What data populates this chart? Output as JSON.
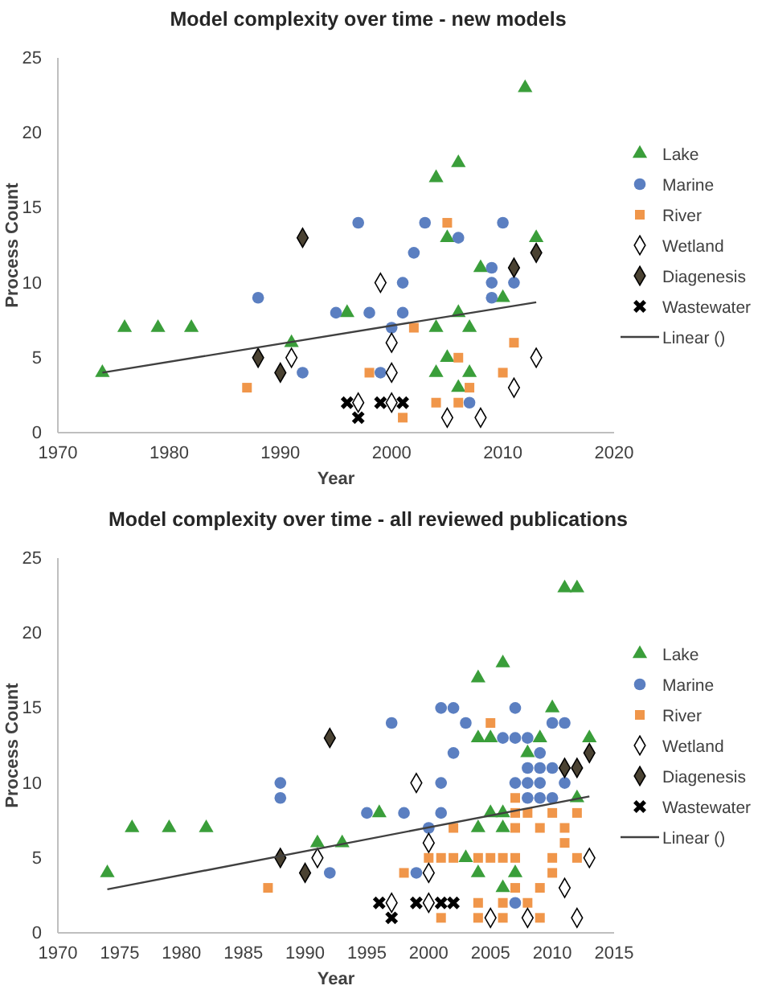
{
  "chart_data": [
    {
      "type": "scatter",
      "title": "Model complexity over time - new models",
      "xlabel": "Year",
      "ylabel": "Process Count",
      "xlim": [
        1970,
        2020
      ],
      "xticks": [
        1970,
        1980,
        1990,
        2000,
        2010,
        2020
      ],
      "ylim": [
        0,
        25
      ],
      "yticks": [
        0,
        5,
        10,
        15,
        20,
        25
      ],
      "grid": false,
      "legend": "right",
      "series": [
        {
          "name": "Lake",
          "color": "#3a9e3a",
          "marker": "triangle",
          "x": [
            1974,
            1976,
            1979,
            1982,
            1991,
            1996,
            2004,
            2004,
            2004,
            2005,
            2005,
            2006,
            2006,
            2006,
            2007,
            2007,
            2008,
            2010,
            2012,
            2013
          ],
          "values": [
            4,
            7,
            7,
            7,
            6,
            8,
            17,
            7,
            4,
            13,
            5,
            18,
            8,
            3,
            7,
            4,
            11,
            9,
            23,
            13
          ]
        },
        {
          "name": "Marine",
          "color": "#5b7fc1",
          "marker": "circle",
          "x": [
            1988,
            1992,
            1995,
            1997,
            1998,
            1999,
            2000,
            2001,
            2001,
            2002,
            2003,
            2006,
            2007,
            2009,
            2009,
            2009,
            2010,
            2011
          ],
          "values": [
            9,
            4,
            8,
            14,
            8,
            4,
            7,
            10,
            8,
            12,
            14,
            13,
            2,
            11,
            10,
            9,
            14,
            10
          ]
        },
        {
          "name": "River",
          "color": "#f0964a",
          "marker": "square",
          "x": [
            1987,
            1998,
            2001,
            2002,
            2004,
            2005,
            2006,
            2006,
            2007,
            2010,
            2011
          ],
          "values": [
            3,
            4,
            1,
            7,
            2,
            14,
            5,
            2,
            3,
            4,
            6
          ]
        },
        {
          "name": "Wetland",
          "color": "#ffffff",
          "marker": "diamond",
          "x": [
            1991,
            1997,
            1999,
            2000,
            2000,
            2000,
            2005,
            2008,
            2011,
            2013
          ],
          "values": [
            5,
            2,
            10,
            6,
            2,
            4,
            1,
            1,
            3,
            5
          ]
        },
        {
          "name": "Diagenesis",
          "color": "#4a4232",
          "marker": "diamond",
          "x": [
            1988,
            1990,
            1992,
            2011,
            2013
          ],
          "values": [
            5,
            4,
            13,
            11,
            12
          ]
        },
        {
          "name": "Wastewater",
          "color": "#000000",
          "marker": "cross",
          "x": [
            1996,
            1997,
            1999,
            2001
          ],
          "values": [
            2,
            1,
            2,
            2
          ]
        },
        {
          "name": "Linear ()",
          "type": "line",
          "color": "#404040",
          "marker": "none",
          "x": [
            1974,
            2013
          ],
          "values": [
            4,
            8.7
          ]
        }
      ]
    },
    {
      "type": "scatter",
      "title": "Model complexity over time - all reviewed publications",
      "xlabel": "Year",
      "ylabel": "Process Count",
      "xlim": [
        1970,
        2015
      ],
      "xticks": [
        1970,
        1975,
        1980,
        1985,
        1990,
        1995,
        2000,
        2005,
        2010,
        2015
      ],
      "ylim": [
        0,
        25
      ],
      "yticks": [
        0,
        5,
        10,
        15,
        20,
        25
      ],
      "grid": false,
      "legend": "right",
      "series": [
        {
          "name": "Lake",
          "color": "#3a9e3a",
          "marker": "triangle",
          "x": [
            1974,
            1976,
            1979,
            1982,
            1991,
            1993,
            1996,
            2003,
            2004,
            2004,
            2004,
            2004,
            2005,
            2005,
            2006,
            2006,
            2006,
            2006,
            2007,
            2008,
            2009,
            2010,
            2011,
            2012,
            2012,
            2013
          ],
          "values": [
            4,
            7,
            7,
            7,
            6,
            6,
            8,
            5,
            17,
            13,
            7,
            4,
            13,
            8,
            18,
            8,
            7,
            3,
            4,
            12,
            13,
            15,
            23,
            23,
            9,
            13
          ]
        },
        {
          "name": "Marine",
          "color": "#5b7fc1",
          "marker": "circle",
          "x": [
            1988,
            1988,
            1992,
            1995,
            1997,
            1998,
            1999,
            2000,
            2001,
            2001,
            2001,
            2002,
            2002,
            2003,
            2006,
            2007,
            2007,
            2007,
            2007,
            2008,
            2008,
            2008,
            2008,
            2009,
            2009,
            2009,
            2009,
            2010,
            2010,
            2010,
            2011,
            2011
          ],
          "values": [
            10,
            9,
            4,
            8,
            14,
            8,
            4,
            7,
            15,
            10,
            8,
            15,
            12,
            14,
            13,
            15,
            13,
            10,
            2,
            13,
            11,
            10,
            9,
            12,
            11,
            10,
            9,
            14,
            11,
            9,
            14,
            10
          ]
        },
        {
          "name": "River",
          "color": "#f0964a",
          "marker": "square",
          "x": [
            1987,
            1998,
            2000,
            2001,
            2001,
            2002,
            2002,
            2004,
            2004,
            2004,
            2005,
            2005,
            2006,
            2006,
            2006,
            2007,
            2007,
            2007,
            2007,
            2007,
            2008,
            2008,
            2009,
            2009,
            2009,
            2010,
            2010,
            2010,
            2011,
            2011,
            2012,
            2012
          ],
          "values": [
            3,
            4,
            5,
            5,
            1,
            7,
            5,
            5,
            2,
            1,
            14,
            5,
            5,
            2,
            1,
            9,
            8,
            7,
            5,
            3,
            8,
            2,
            7,
            3,
            1,
            8,
            5,
            4,
            7,
            6,
            8,
            5
          ]
        },
        {
          "name": "Wetland",
          "color": "#ffffff",
          "marker": "diamond",
          "x": [
            1991,
            1997,
            1999,
            2000,
            2000,
            2000,
            2005,
            2008,
            2011,
            2012,
            2013
          ],
          "values": [
            5,
            2,
            10,
            6,
            4,
            2,
            1,
            1,
            3,
            1,
            5
          ]
        },
        {
          "name": "Diagenesis",
          "color": "#4a4232",
          "marker": "diamond",
          "x": [
            1988,
            1990,
            1992,
            2011,
            2012,
            2013
          ],
          "values": [
            5,
            4,
            13,
            11,
            11,
            12
          ]
        },
        {
          "name": "Wastewater",
          "color": "#000000",
          "marker": "cross",
          "x": [
            1996,
            1997,
            1999,
            2001,
            2002
          ],
          "values": [
            2,
            1,
            2,
            2,
            2
          ]
        },
        {
          "name": "Linear ()",
          "type": "line",
          "color": "#404040",
          "marker": "none",
          "x": [
            1974,
            2013
          ],
          "values": [
            2.9,
            9.1
          ]
        }
      ]
    }
  ]
}
